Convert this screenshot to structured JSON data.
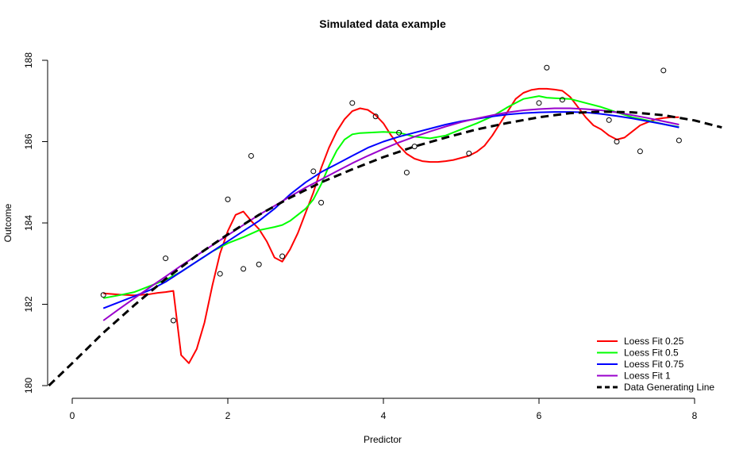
{
  "chart_data": {
    "type": "scatter",
    "title": "Simulated data example",
    "xlabel": "Predictor",
    "ylabel": "Outcome",
    "xlim": [
      0,
      8
    ],
    "ylim": [
      180,
      188
    ],
    "x_ticks": [
      "0",
      "2",
      "4",
      "6",
      "8"
    ],
    "y_ticks": [
      "180",
      "182",
      "184",
      "186",
      "188"
    ],
    "grid": false,
    "legend_position": "bottom-right",
    "points": [
      [
        0.4,
        182.23
      ],
      [
        1.2,
        183.13
      ],
      [
        1.3,
        181.6
      ],
      [
        1.9,
        182.75
      ],
      [
        2.0,
        184.58
      ],
      [
        2.2,
        182.87
      ],
      [
        2.3,
        185.65
      ],
      [
        2.4,
        182.98
      ],
      [
        2.7,
        183.18
      ],
      [
        3.1,
        185.27
      ],
      [
        3.2,
        184.5
      ],
      [
        3.6,
        186.95
      ],
      [
        3.9,
        186.62
      ],
      [
        4.2,
        186.22
      ],
      [
        4.3,
        185.24
      ],
      [
        4.4,
        185.88
      ],
      [
        5.1,
        185.71
      ],
      [
        6.0,
        186.95
      ],
      [
        6.1,
        187.82
      ],
      [
        6.3,
        187.03
      ],
      [
        6.9,
        186.53
      ],
      [
        7.0,
        186.0
      ],
      [
        7.3,
        185.76
      ],
      [
        7.6,
        187.75
      ],
      [
        7.8,
        186.03
      ]
    ],
    "series": [
      {
        "name": "Loess Fit 0.25",
        "color": "#ff0000",
        "x": [
          0.4,
          0.6,
          0.8,
          1.0,
          1.1,
          1.2,
          1.3,
          1.4,
          1.5,
          1.6,
          1.7,
          1.8,
          1.9,
          2.0,
          2.1,
          2.2,
          2.3,
          2.4,
          2.5,
          2.6,
          2.7,
          2.8,
          2.9,
          3.0,
          3.1,
          3.2,
          3.3,
          3.4,
          3.5,
          3.6,
          3.7,
          3.8,
          3.9,
          4.0,
          4.1,
          4.2,
          4.3,
          4.4,
          4.5,
          4.6,
          4.7,
          4.8,
          4.9,
          5.0,
          5.1,
          5.2,
          5.3,
          5.4,
          5.5,
          5.6,
          5.7,
          5.8,
          5.9,
          6.0,
          6.1,
          6.2,
          6.3,
          6.4,
          6.5,
          6.6,
          6.7,
          6.8,
          6.9,
          7.0,
          7.1,
          7.2,
          7.3,
          7.4,
          7.5,
          7.6,
          7.7,
          7.8
        ],
        "y": [
          182.27,
          182.24,
          182.22,
          182.25,
          182.28,
          182.3,
          182.33,
          180.75,
          180.55,
          180.9,
          181.55,
          182.45,
          183.25,
          183.8,
          184.2,
          184.28,
          184.05,
          183.85,
          183.55,
          183.15,
          183.05,
          183.35,
          183.75,
          184.25,
          184.75,
          185.35,
          185.85,
          186.25,
          186.55,
          186.75,
          186.82,
          186.78,
          186.65,
          186.45,
          186.15,
          185.9,
          185.7,
          185.58,
          185.52,
          185.5,
          185.5,
          185.52,
          185.55,
          185.6,
          185.65,
          185.75,
          185.9,
          186.15,
          186.45,
          186.75,
          187.05,
          187.2,
          187.27,
          187.3,
          187.3,
          187.28,
          187.25,
          187.1,
          186.85,
          186.6,
          186.4,
          186.3,
          186.15,
          186.05,
          186.1,
          186.25,
          186.4,
          186.48,
          186.55,
          186.58,
          186.6,
          186.6
        ]
      },
      {
        "name": "Loess Fit 0.5",
        "color": "#00ff00",
        "x": [
          0.4,
          0.6,
          0.8,
          1.0,
          1.2,
          1.4,
          1.6,
          1.8,
          2.0,
          2.2,
          2.4,
          2.6,
          2.7,
          2.8,
          3.0,
          3.1,
          3.2,
          3.3,
          3.4,
          3.5,
          3.6,
          3.7,
          3.8,
          3.9,
          4.0,
          4.2,
          4.4,
          4.6,
          4.8,
          5.0,
          5.2,
          5.4,
          5.6,
          5.8,
          6.0,
          6.1,
          6.2,
          6.4,
          6.6,
          6.8,
          7.0,
          7.2,
          7.4,
          7.6,
          7.8
        ],
        "y": [
          182.15,
          182.22,
          182.3,
          182.45,
          182.6,
          182.8,
          183.05,
          183.3,
          183.5,
          183.65,
          183.82,
          183.9,
          183.95,
          184.05,
          184.35,
          184.58,
          184.95,
          185.4,
          185.78,
          186.05,
          186.18,
          186.21,
          186.22,
          186.23,
          186.24,
          186.22,
          186.12,
          186.08,
          186.15,
          186.3,
          186.45,
          186.62,
          186.85,
          187.05,
          187.12,
          187.08,
          187.07,
          187.05,
          186.95,
          186.85,
          186.72,
          186.6,
          186.52,
          186.43,
          186.36
        ]
      },
      {
        "name": "Loess Fit 0.75",
        "color": "#0000ff",
        "x": [
          0.4,
          0.6,
          0.8,
          1.0,
          1.2,
          1.4,
          1.6,
          1.8,
          2.0,
          2.2,
          2.4,
          2.6,
          2.8,
          3.0,
          3.2,
          3.4,
          3.6,
          3.8,
          4.0,
          4.2,
          4.4,
          4.6,
          4.8,
          5.0,
          5.2,
          5.4,
          5.6,
          5.8,
          6.0,
          6.2,
          6.4,
          6.6,
          6.8,
          7.0,
          7.2,
          7.4,
          7.6,
          7.8
        ],
        "y": [
          181.9,
          182.05,
          182.2,
          182.35,
          182.55,
          182.8,
          183.05,
          183.3,
          183.55,
          183.8,
          184.05,
          184.35,
          184.7,
          185.0,
          185.25,
          185.45,
          185.65,
          185.85,
          186.0,
          186.12,
          186.22,
          186.32,
          186.42,
          186.5,
          186.56,
          186.62,
          186.67,
          186.7,
          186.72,
          186.73,
          186.73,
          186.72,
          186.68,
          186.63,
          186.57,
          186.5,
          186.43,
          186.35
        ]
      },
      {
        "name": "Loess Fit 1",
        "color": "#9900cc",
        "x": [
          0.4,
          0.6,
          0.8,
          1.0,
          1.2,
          1.4,
          1.6,
          1.8,
          2.0,
          2.2,
          2.4,
          2.6,
          2.8,
          3.0,
          3.2,
          3.4,
          3.6,
          3.8,
          4.0,
          4.2,
          4.4,
          4.6,
          4.8,
          5.0,
          5.2,
          5.4,
          5.6,
          5.8,
          6.0,
          6.2,
          6.4,
          6.6,
          6.8,
          7.0,
          7.2,
          7.4,
          7.6,
          7.8
        ],
        "y": [
          181.6,
          181.88,
          182.15,
          182.42,
          182.68,
          182.95,
          183.2,
          183.45,
          183.7,
          183.95,
          184.2,
          184.42,
          184.65,
          184.87,
          185.07,
          185.27,
          185.47,
          185.65,
          185.82,
          185.98,
          186.12,
          186.25,
          186.37,
          186.48,
          186.57,
          186.65,
          186.72,
          186.77,
          186.8,
          186.82,
          186.82,
          186.8,
          186.77,
          186.72,
          186.65,
          186.58,
          186.5,
          186.42
        ]
      },
      {
        "name": "Data Generating Line",
        "color": "#000000",
        "dashed": true,
        "x": [
          -0.3,
          0.0,
          0.4,
          0.8,
          1.2,
          1.6,
          2.0,
          2.4,
          2.8,
          3.2,
          3.6,
          4.0,
          4.4,
          4.8,
          5.2,
          5.6,
          6.0,
          6.4,
          6.8,
          7.2,
          7.6,
          8.0,
          8.35
        ],
        "y": [
          180.0,
          180.55,
          181.3,
          181.98,
          182.62,
          183.2,
          183.72,
          184.2,
          184.62,
          185.0,
          185.32,
          185.62,
          185.88,
          186.1,
          186.3,
          186.46,
          186.6,
          186.7,
          186.74,
          186.72,
          186.65,
          186.52,
          186.35
        ]
      }
    ]
  }
}
